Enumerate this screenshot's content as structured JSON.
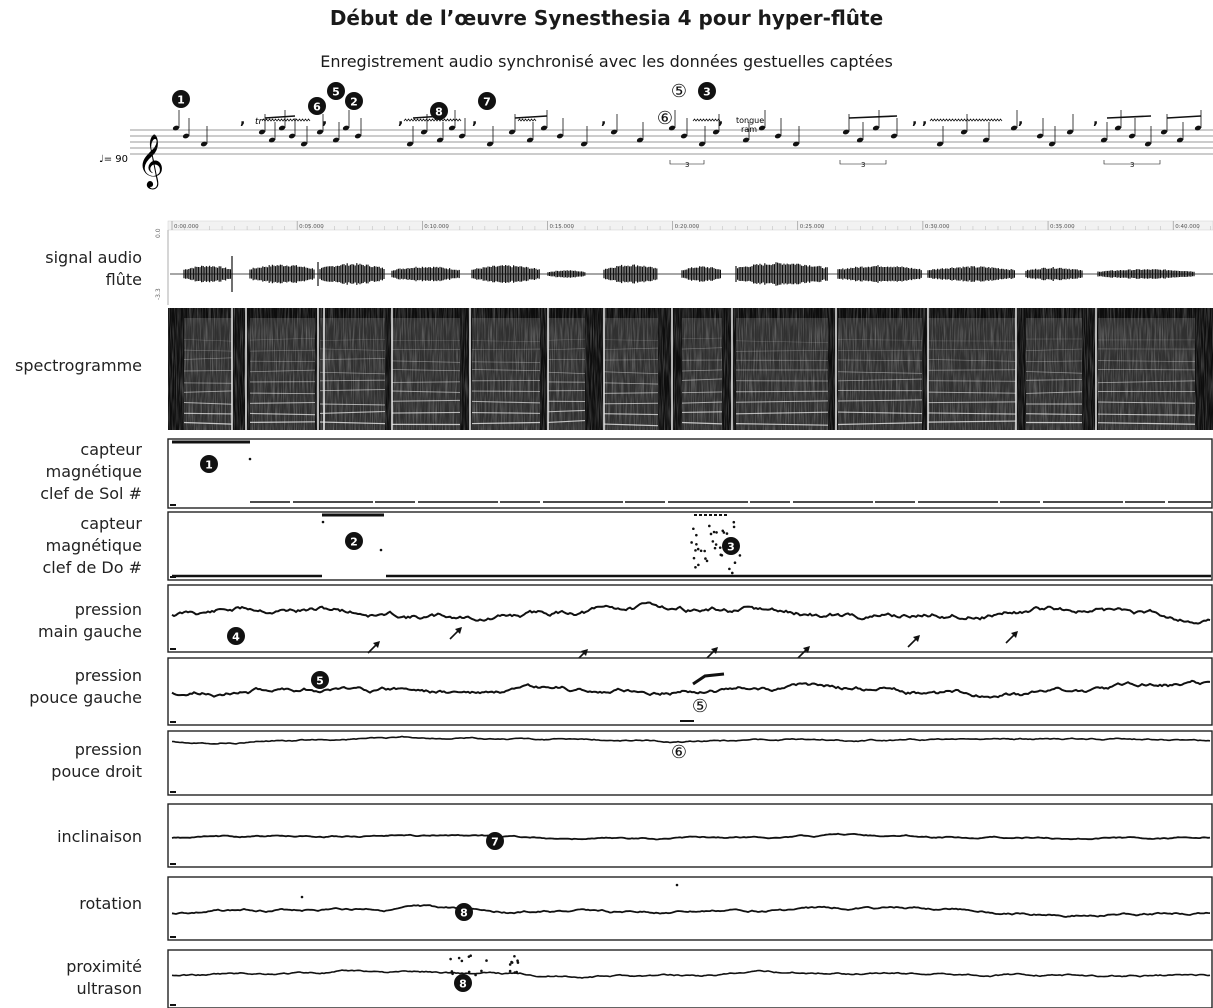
{
  "title": "Début de l’œuvre Synesthesia 4 pour hyper-flûte",
  "subtitle": "Enregistrement audio synchronisé avec les données gestuelles captées",
  "score": {
    "tempo": "♩= 90",
    "annotations": [
      "tr",
      "tongue",
      "ram",
      "3"
    ],
    "markers": [
      "1",
      "5",
      "6",
      "2",
      "8",
      "7",
      "⑤",
      "3",
      "⑥"
    ]
  },
  "time_axis": {
    "ticks": [
      "0:00.000",
      "0:05.000",
      "0:10.000",
      "0:15.000",
      "0:20.000",
      "0:25.000",
      "0:30.000",
      "0:35.000",
      "0:40.000"
    ],
    "audio_scale": [
      "0.0",
      "-3.3"
    ]
  },
  "tracks": [
    {
      "id": "audio",
      "label": [
        "signal audio",
        "flûte"
      ]
    },
    {
      "id": "spectro",
      "label": [
        "spectrogramme"
      ]
    },
    {
      "id": "sol",
      "label": [
        "capteur",
        "magnétique",
        "clef de Sol #"
      ],
      "markers": [
        "1"
      ]
    },
    {
      "id": "do",
      "label": [
        "capteur",
        "magnétique",
        "clef de Do #"
      ],
      "markers": [
        "2",
        "3"
      ]
    },
    {
      "id": "mg",
      "label": [
        "pression",
        "main gauche"
      ],
      "markers": [
        "4"
      ]
    },
    {
      "id": "pg",
      "label": [
        "pression",
        "pouce gauche"
      ],
      "markers": [
        "5",
        "⑤"
      ]
    },
    {
      "id": "pd",
      "label": [
        "pression",
        "pouce droit"
      ],
      "markers": [
        "⑥"
      ]
    },
    {
      "id": "inc",
      "label": [
        "inclinaison"
      ],
      "markers": [
        "7"
      ]
    },
    {
      "id": "rot",
      "label": [
        "rotation"
      ],
      "markers": [
        "8"
      ]
    },
    {
      "id": "prox",
      "label": [
        "proximité",
        "ultrason"
      ],
      "markers": [
        "8"
      ]
    }
  ],
  "colors": {
    "ink": "#111111",
    "panel_border": "#222222",
    "spectrogram_bg": "#0d0d0d"
  }
}
